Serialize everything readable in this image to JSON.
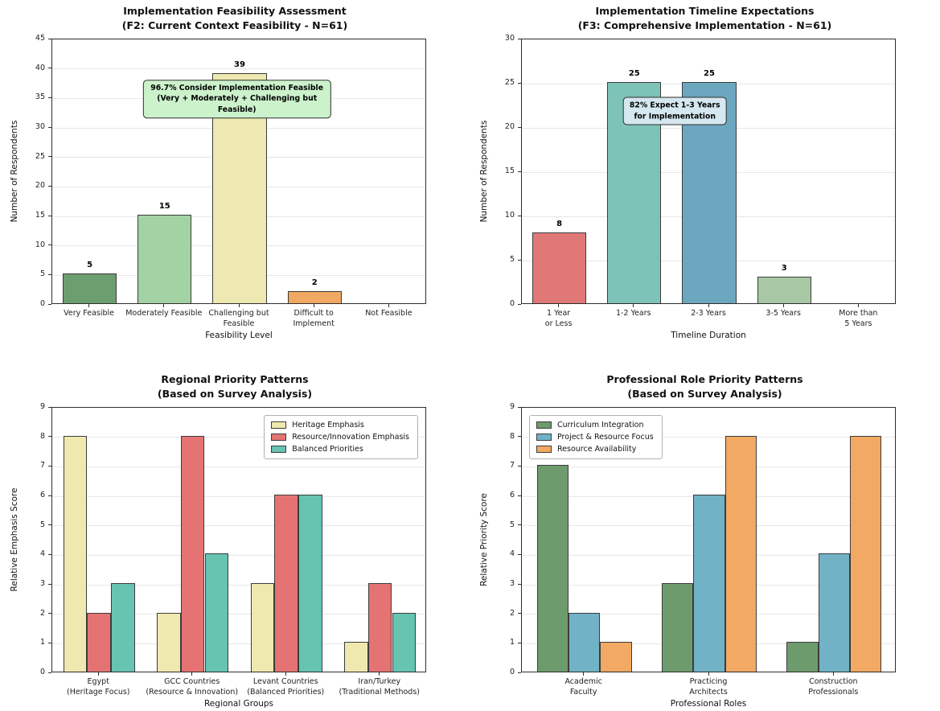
{
  "figure": {
    "background": "#ffffff"
  },
  "chart_data": [
    {
      "id": "feasibility-assessment",
      "type": "bar",
      "title": "Implementation Feasibility Assessment\n(F2: Current Context Feasibility - N=61)",
      "xlabel": "Feasibility Level",
      "ylabel": "Number of Respondents",
      "ylim": [
        0,
        45
      ],
      "ytick_step": 5,
      "grid": true,
      "categories": [
        "Very Feasible",
        "Moderately Feasible",
        "Challenging but\nFeasible",
        "Difficult to\nImplement",
        "Not Feasible"
      ],
      "values": [
        5,
        15,
        39,
        2,
        0
      ],
      "bar_colors": [
        "#6d9e70",
        "#a3d3a4",
        "#ede9b0",
        "#f0a862",
        "#9e9e9e"
      ],
      "show_values": true,
      "annotation": {
        "text": "96.7% Consider Implementation Feasible\n(Very + Moderately + Challenging but Feasible)",
        "bg": "#ccf2cc",
        "border": "#2e2e2e",
        "x_pct": 49.5,
        "y_value": 34.6
      }
    },
    {
      "id": "timeline-expectations",
      "type": "bar",
      "title": "Implementation Timeline Expectations\n(F3: Comprehensive Implementation - N=61)",
      "xlabel": "Timeline Duration",
      "ylabel": "Number of Respondents",
      "ylim": [
        0,
        30
      ],
      "ytick_step": 5,
      "grid": true,
      "categories": [
        "1 Year\nor Less",
        "1-2 Years",
        "2-3 Years",
        "3-5 Years",
        "More than\n5 Years"
      ],
      "values": [
        8,
        25,
        25,
        3,
        0
      ],
      "bar_colors": [
        "#e07878",
        "#7ec3b7",
        "#6ba8bf",
        "#a8c7a4",
        "#9e9e9e"
      ],
      "show_values": true,
      "annotation": {
        "text": "82% Expect 1-3 Years\nfor Implementation",
        "bg": "#d5e7ef",
        "border": "#2e2e2e",
        "x_pct": 41,
        "y_value": 21.7
      }
    },
    {
      "id": "regional-priorities",
      "type": "grouped_bar",
      "title": "Regional Priority Patterns\n(Based on Survey Analysis)",
      "xlabel": "Regional Groups",
      "ylabel": "Relative Emphasis Score",
      "ylim": [
        0,
        9
      ],
      "ytick_step": 1,
      "grid": true,
      "categories": [
        "Egypt\n(Heritage Focus)",
        "GCC Countries\n(Resource & Innovation)",
        "Levant Countries\n(Balanced Priorities)",
        "Iran/Turkey\n(Traditional Methods)"
      ],
      "series": [
        {
          "name": "Heritage Emphasis",
          "color": "#efe9af",
          "values": [
            8,
            2,
            3,
            1
          ]
        },
        {
          "name": "Resource/Innovation Emphasis",
          "color": "#e57373",
          "values": [
            2,
            8,
            6,
            3
          ]
        },
        {
          "name": "Balanced Priorities",
          "color": "#66c4b1",
          "values": [
            3,
            4,
            6,
            2
          ]
        }
      ],
      "legend": {
        "position": "top-right"
      },
      "show_values": false
    },
    {
      "id": "role-priorities",
      "type": "grouped_bar",
      "title": "Professional Role Priority Patterns\n(Based on Survey Analysis)",
      "xlabel": "Professional Roles",
      "ylabel": "Relative Priority Score",
      "ylim": [
        0,
        9
      ],
      "ytick_step": 1,
      "grid": true,
      "categories": [
        "Academic\nFaculty",
        "Practicing\nArchitects",
        "Construction\nProfessionals"
      ],
      "series": [
        {
          "name": "Curriculum Integration",
          "color": "#6d9b6d",
          "values": [
            7,
            3,
            1
          ]
        },
        {
          "name": "Project & Resource Focus",
          "color": "#72b2c6",
          "values": [
            2,
            6,
            4
          ]
        },
        {
          "name": "Resource Availability",
          "color": "#f1a963",
          "values": [
            1,
            8,
            8
          ]
        }
      ],
      "legend": {
        "position": "top-left"
      },
      "show_values": false
    }
  ]
}
